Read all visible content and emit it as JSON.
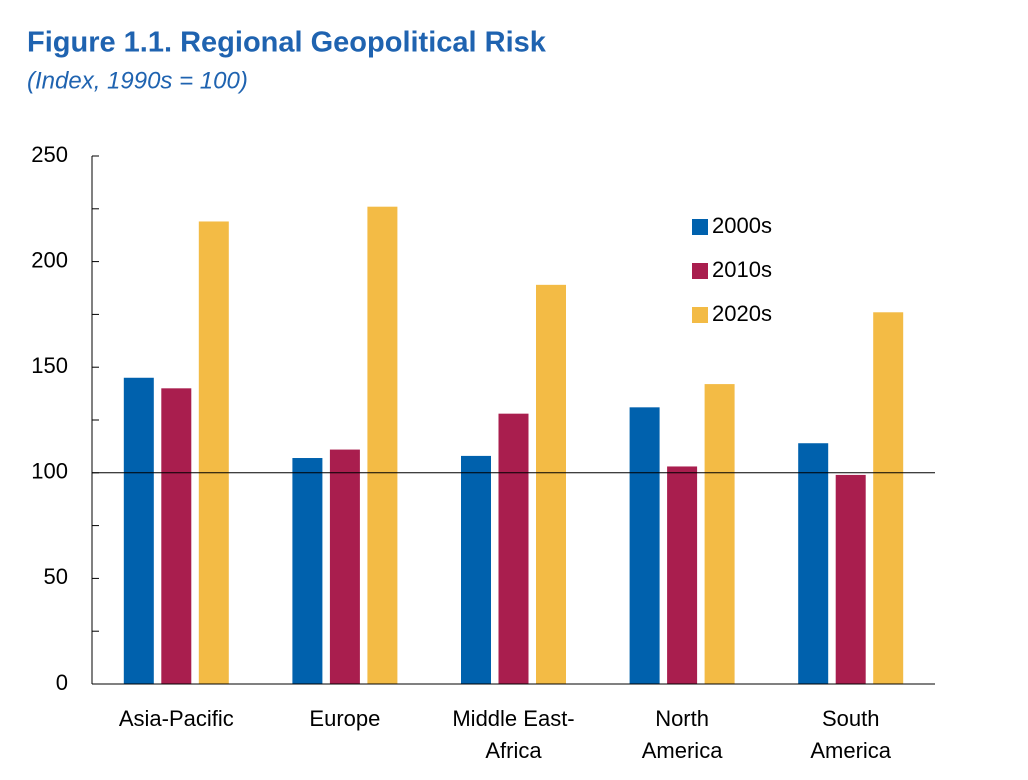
{
  "chart_data": {
    "type": "bar",
    "title": "Figure 1.1.  Regional Geopolitical Risk",
    "subtitle": "(Index, 1990s = 100)",
    "categories": [
      "Asia-Pacific",
      "Europe",
      "Middle East-\nAfrica",
      "North\nAmerica",
      "South\nAmerica"
    ],
    "series": [
      {
        "name": "2000s",
        "color": "#0061ad",
        "values": [
          145,
          107,
          108,
          131,
          114
        ]
      },
      {
        "name": "2010s",
        "color": "#a91e4e",
        "values": [
          140,
          111,
          128,
          103,
          99
        ]
      },
      {
        "name": "2020s",
        "color": "#f3bb45",
        "values": [
          219,
          226,
          189,
          142,
          176
        ]
      }
    ],
    "ylim": [
      0,
      250
    ],
    "yticks": [
      0,
      50,
      100,
      150,
      200,
      250
    ],
    "reference_line": 100,
    "legend": "upper right"
  }
}
